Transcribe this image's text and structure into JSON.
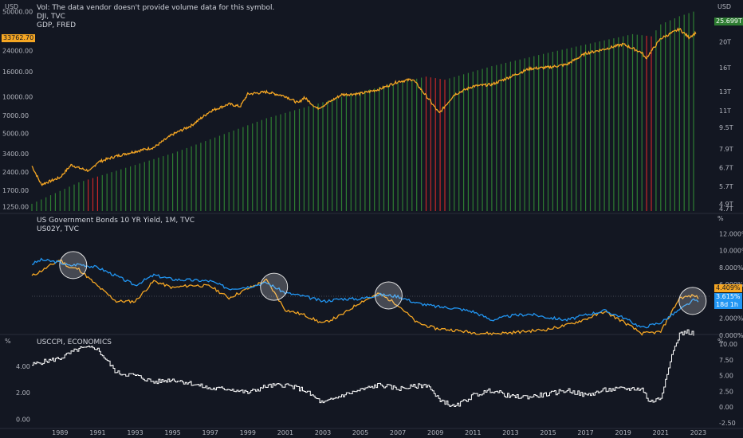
{
  "colors": {
    "background": "#131722",
    "grid": "#1f2430",
    "axis_text": "#b2b5be",
    "dji": "#f5a623",
    "gdp_up": "#2e7d32",
    "gdp_down": "#c62828",
    "us10y": "#f5a623",
    "us02y": "#2196f3",
    "cpi": "#ffffff",
    "circle": "#e0e0e0"
  },
  "top_pane": {
    "legend": [
      "Vol: The data vendor doesn't provide volume data for this symbol.",
      "DJI, TVC",
      "GDP, FRED"
    ],
    "left_unit": "USD",
    "right_unit": "USD",
    "dji_badge": "33762.70",
    "gdp_badge": "25.699T"
  },
  "mid_pane": {
    "legend": [
      "US Government Bonds 10 YR Yield, 1M, TVC",
      "US02Y, TVC"
    ],
    "right_unit": "%",
    "us10y_badge": "4.409%",
    "us02y_badge": "3.615%",
    "us02y_badge_sub": "18d 1h"
  },
  "bottom_pane": {
    "legend": [
      "USCCPI, ECONOMICS"
    ],
    "left_unit": "%",
    "right_unit": "%"
  },
  "chart_data": [
    {
      "type": "line",
      "name": "DJI, TVC",
      "scale": "log",
      "x": [
        1987.5,
        1988,
        1989,
        1989.6,
        1990,
        1990.6,
        1991,
        1992,
        1993,
        1994,
        1995,
        1996,
        1997,
        1998,
        1998.6,
        1999,
        2000,
        2001,
        2001.7,
        2002,
        2002.7,
        2003,
        2004,
        2005,
        2006,
        2007,
        2007.8,
        2008,
        2008.7,
        2009.2,
        2010,
        2011,
        2012,
        2013,
        2014,
        2015,
        2016,
        2017,
        2018,
        2019,
        2020,
        2020.2,
        2021,
        2022,
        2022.5,
        2022.9
      ],
      "values": [
        2700,
        1900,
        2170,
        2760,
        2600,
        2450,
        2900,
        3250,
        3550,
        3830,
        4900,
        5800,
        7600,
        8700,
        8300,
        10500,
        10950,
        10100,
        8850,
        9900,
        8000,
        8400,
        10400,
        10600,
        11500,
        13300,
        13900,
        12700,
        9300,
        7300,
        10400,
        12200,
        12600,
        14600,
        17000,
        17400,
        18400,
        22700,
        24600,
        27000,
        23000,
        20500,
        30000,
        36000,
        30700,
        33762
      ]
    },
    {
      "type": "bar",
      "name": "GDP, FRED",
      "scale": "log",
      "x": [
        1987.5,
        1990,
        1995,
        2000,
        2005,
        2008.5,
        2009.5,
        2012,
        2015,
        2019.5,
        2020.5,
        2021,
        2022,
        2022.8
      ],
      "values": [
        4.9,
        5.9,
        7.6,
        10.3,
        13.0,
        14.8,
        14.4,
        16.2,
        18.2,
        21.4,
        21.0,
        23.3,
        25.0,
        26.1
      ],
      "down_periods": [
        [
          1990.5,
          1991.2
        ],
        [
          2008.5,
          2009.6
        ],
        [
          2020.1,
          2020.6
        ]
      ],
      "y_ticks": [
        "4.7T",
        "4.9T",
        "5.7T",
        "6.7T",
        "7.9T",
        "9.5T",
        "11T",
        "13T",
        "16T",
        "20T",
        "24T"
      ]
    },
    {
      "type": "line",
      "name": "US Government Bonds 10 YR Yield",
      "x": [
        1987.5,
        1988,
        1989,
        1989.5,
        1990,
        1991,
        1992,
        1993,
        1994,
        1995,
        1996,
        1997,
        1998,
        1999,
        2000,
        2001,
        2002,
        2003,
        2004,
        2005,
        2006,
        2007,
        2008,
        2009,
        2010,
        2011,
        2012,
        2013,
        2014,
        2015,
        2016,
        2017,
        2018,
        2019,
        2020,
        2021,
        2022,
        2022.8,
        2023
      ],
      "values": [
        8.4,
        8.9,
        8.6,
        8.2,
        8.4,
        8.0,
        7.0,
        5.9,
        7.1,
        6.6,
        6.5,
        6.4,
        5.5,
        5.7,
        6.2,
        5.0,
        4.6,
        4.0,
        4.3,
        4.3,
        4.8,
        4.6,
        3.8,
        3.4,
        3.2,
        2.8,
        1.8,
        2.3,
        2.5,
        2.1,
        1.8,
        2.4,
        2.9,
        2.1,
        0.9,
        1.5,
        3.0,
        4.2,
        3.9
      ]
    },
    {
      "type": "line",
      "name": "US02Y, TVC",
      "x": [
        1987.5,
        1988,
        1989,
        1989.5,
        1990,
        1991,
        1992,
        1993,
        1994,
        1995,
        1996,
        1997,
        1998,
        1999,
        2000,
        2001,
        2002,
        2003,
        2004,
        2005,
        2006,
        2007,
        2008,
        2009,
        2010,
        2011,
        2012,
        2013,
        2014,
        2015,
        2016,
        2017,
        2018,
        2019,
        2020,
        2021,
        2022,
        2022.8,
        2023
      ],
      "values": [
        7.0,
        7.6,
        8.9,
        8.0,
        7.8,
        5.8,
        4.0,
        4.0,
        6.4,
        5.6,
        5.9,
        5.8,
        4.4,
        5.5,
        6.5,
        3.0,
        2.4,
        1.4,
        2.4,
        3.9,
        4.9,
        3.6,
        1.5,
        0.8,
        0.6,
        0.3,
        0.2,
        0.3,
        0.5,
        0.7,
        1.2,
        1.9,
        2.8,
        1.6,
        0.2,
        0.4,
        4.4,
        4.7,
        4.4
      ]
    },
    {
      "type": "line",
      "name": "USCCPI, ECONOMICS",
      "x": [
        1987.5,
        1988,
        1989,
        1990,
        1990.9,
        1991.5,
        1992,
        1993,
        1994,
        1995,
        1996,
        1997,
        1998,
        1999,
        2000,
        2001,
        2002,
        2003,
        2004,
        2005,
        2006,
        2007,
        2008,
        2008.6,
        2009,
        2010,
        2011,
        2012,
        2013,
        2014,
        2015,
        2016,
        2017,
        2018,
        2019,
        2020,
        2020.4,
        2021,
        2021.5,
        2022,
        2022.4,
        2022.8
      ],
      "values": [
        4.1,
        4.3,
        4.6,
        5.3,
        5.4,
        4.4,
        3.5,
        3.3,
        2.8,
        3.0,
        2.7,
        2.3,
        2.3,
        2.0,
        2.5,
        2.6,
        2.2,
        1.2,
        1.8,
        2.2,
        2.6,
        2.3,
        2.5,
        2.6,
        1.7,
        0.9,
        1.8,
        2.2,
        1.7,
        1.7,
        1.9,
        2.2,
        1.8,
        2.2,
        2.3,
        2.3,
        1.3,
        1.6,
        4.5,
        6.4,
        6.6,
        6.4
      ]
    }
  ],
  "axes": {
    "x_ticks": [
      "1989",
      "1991",
      "1993",
      "1995",
      "1997",
      "1999",
      "2001",
      "2003",
      "2005",
      "2007",
      "2009",
      "2011",
      "2013",
      "2015",
      "2017",
      "2019",
      "2021",
      "2023"
    ],
    "x_tick_years": [
      1989,
      1991,
      1993,
      1995,
      1997,
      1999,
      2001,
      2003,
      2005,
      2007,
      2009,
      2011,
      2013,
      2015,
      2017,
      2019,
      2021,
      2023
    ],
    "top_left_ticks": [
      "1250.00",
      "1700.00",
      "2400.00",
      "3400.00",
      "5000.00",
      "7000.00",
      "10000.00",
      "16000.00",
      "24000.00",
      "50000.00"
    ],
    "top_left_values": [
      1250,
      1700,
      2400,
      3400,
      5000,
      7000,
      10000,
      16000,
      24000,
      50000
    ],
    "top_right_values": [
      4.7,
      4.9,
      5.7,
      6.7,
      7.9,
      9.5,
      11,
      13,
      16,
      20,
      24
    ],
    "mid_ticks": [
      "0.000%",
      "2.000%",
      "6.000%",
      "8.000%",
      "10.000%",
      "12.000%"
    ],
    "mid_values": [
      0,
      2,
      6,
      8,
      10,
      12
    ],
    "bottom_left_ticks": [
      "0.00",
      "2.00",
      "4.00"
    ],
    "bottom_left_values": [
      0,
      2,
      4
    ],
    "bottom_right_ticks": [
      "-2.50",
      "0.00",
      "2.50",
      "5.00",
      "7.50",
      "10.00"
    ],
    "bottom_right_values": [
      -2.5,
      0,
      2.5,
      5,
      7.5,
      10
    ]
  },
  "annotations": {
    "circles_at_year": [
      1989.7,
      2000.4,
      2006.5,
      2022.7
    ]
  }
}
